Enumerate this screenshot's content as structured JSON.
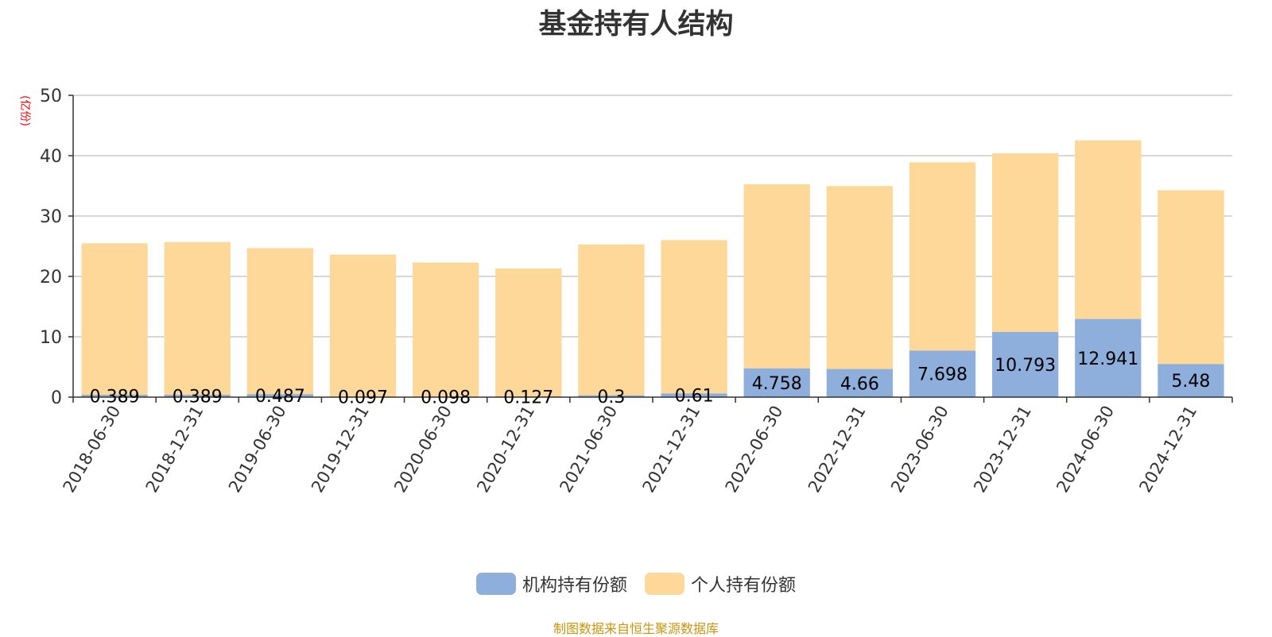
{
  "chart_data": {
    "type": "bar",
    "stacked": true,
    "title": "基金持有人结构",
    "unit": "(亿份)",
    "categories": [
      "2018-06-30",
      "2018-12-31",
      "2019-06-30",
      "2019-12-31",
      "2020-06-30",
      "2020-12-31",
      "2021-06-30",
      "2021-12-31",
      "2022-06-30",
      "2022-12-31",
      "2023-06-30",
      "2023-12-31",
      "2024-06-30",
      "2024-12-31"
    ],
    "series": [
      {
        "name": "机构持有份额",
        "color": "#8eaedc",
        "values": [
          0.389,
          0.389,
          0.487,
          0.097,
          0.098,
          0.127,
          0.3,
          0.61,
          4.758,
          4.66,
          7.698,
          10.793,
          12.941,
          5.48
        ],
        "labels": [
          "0.389",
          "0.389",
          "0.487",
          "0.097",
          "0.098",
          "0.127",
          "0.3",
          "0.61",
          "4.758",
          "4.66",
          "7.698",
          "10.793",
          "12.941",
          "5.48"
        ]
      },
      {
        "name": "个人持有份额",
        "color": "#fdd898",
        "values": [
          25.1,
          25.3,
          24.2,
          23.5,
          22.2,
          21.2,
          25.0,
          25.4,
          30.5,
          30.3,
          31.2,
          29.6,
          29.6,
          28.8
        ]
      }
    ],
    "ylim": [
      0,
      50
    ],
    "yticks": [
      0,
      10,
      20,
      30,
      40,
      50
    ],
    "grid": true,
    "legend": "bottom-center"
  },
  "source_note": "制图数据来自恒生聚源数据库"
}
